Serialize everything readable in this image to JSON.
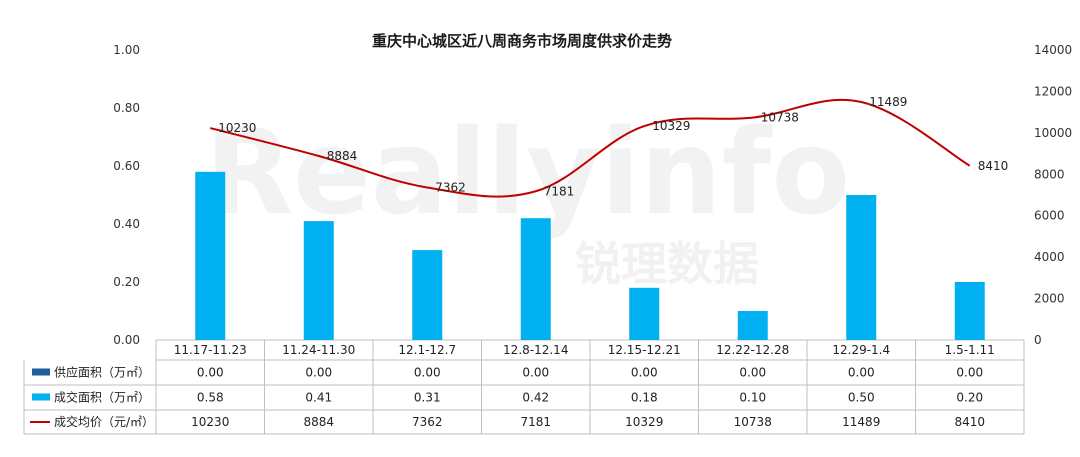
{
  "chart_data": {
    "type": "bar",
    "title": "重庆中心城区近八周商务市场周度供求价走势",
    "categories": [
      "11.17-11.23",
      "11.24-11.30",
      "12.1-12.7",
      "12.8-12.14",
      "12.15-12.21",
      "12.22-12.28",
      "12.29-1.4",
      "1.5-1.11"
    ],
    "y_left": {
      "min": 0,
      "max": 1.0,
      "ticks": [
        "0.00",
        "0.20",
        "0.40",
        "0.60",
        "0.80",
        "1.00"
      ]
    },
    "y_right": {
      "min": 0,
      "max": 14000,
      "ticks": [
        "0",
        "2000",
        "4000",
        "6000",
        "8000",
        "10000",
        "12000",
        "14000"
      ]
    },
    "series": [
      {
        "name": "供应面积（万㎡）",
        "type": "bar",
        "axis": "left",
        "color": "#1f5fa0",
        "values": [
          0,
          0,
          0,
          0,
          0,
          0,
          0,
          0
        ],
        "table": [
          "0.00",
          "0.00",
          "0.00",
          "0.00",
          "0.00",
          "0.00",
          "0.00",
          "0.00"
        ]
      },
      {
        "name": "成交面积（万㎡）",
        "type": "bar",
        "axis": "left",
        "color": "#00b0f0",
        "values": [
          0.58,
          0.41,
          0.31,
          0.42,
          0.18,
          0.1,
          0.5,
          0.2
        ],
        "table": [
          "0.58",
          "0.41",
          "0.31",
          "0.42",
          "0.18",
          "0.10",
          "0.50",
          "0.20"
        ]
      },
      {
        "name": "成交均价（元/㎡）",
        "type": "line",
        "axis": "right",
        "color": "#c00000",
        "values": [
          10230,
          8884,
          7362,
          7181,
          10329,
          10738,
          11489,
          8410
        ],
        "table": [
          "10230",
          "8884",
          "7362",
          "7181",
          "10329",
          "10738",
          "11489",
          "8410"
        ]
      }
    ],
    "legend": "data-table"
  },
  "watermark": {
    "text": "Reallyinfo",
    "subtext": "锐理数据"
  }
}
